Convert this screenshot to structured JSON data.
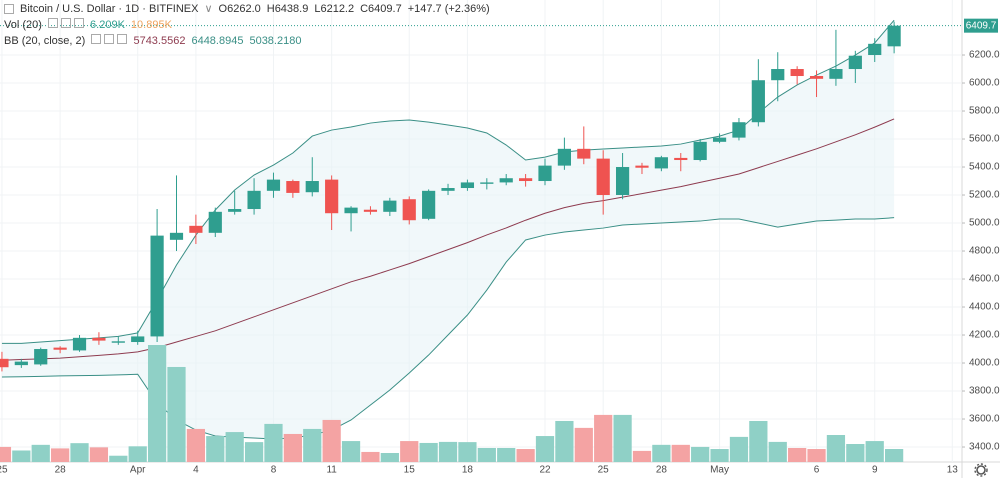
{
  "chart_data": {
    "type": "candlestick",
    "title": "Bitcoin / U.S. Dollar · 1D · BITFINEX",
    "ohlc_legend": [
      "O6262.0",
      "H6438.9",
      "L6212.2",
      "C6409.7",
      "+147.7 (+2.36%)"
    ],
    "open": [
      4030,
      3985,
      3990,
      4110,
      4090,
      4180,
      4145,
      4150,
      4190,
      4880,
      4980,
      4930,
      5080,
      5100,
      5230,
      5300,
      5220,
      5310,
      5070,
      5095,
      5080,
      5170,
      5030,
      5230,
      5250,
      5280,
      5290,
      5320,
      5300,
      5410,
      5530,
      5460,
      5200,
      5410,
      5390,
      5465,
      5450,
      5580,
      5610,
      5720,
      6020,
      6100,
      6050,
      6030,
      6100,
      6200,
      6262
    ],
    "high": [
      4080,
      4030,
      4110,
      4120,
      4200,
      4220,
      4190,
      4230,
      5100,
      5340,
      5060,
      5110,
      5230,
      5320,
      5360,
      5310,
      5470,
      5340,
      5120,
      5120,
      5180,
      5190,
      5240,
      5280,
      5310,
      5320,
      5350,
      5350,
      5460,
      5610,
      5690,
      5520,
      5500,
      5430,
      5480,
      5500,
      5600,
      5640,
      5750,
      6170,
      6220,
      6120,
      6090,
      6380,
      6230,
      6320,
      6438.9
    ],
    "low": [
      3940,
      3965,
      3980,
      4070,
      4080,
      4130,
      4130,
      4130,
      4150,
      4800,
      4850,
      4900,
      5060,
      5060,
      5180,
      5180,
      5190,
      4950,
      4940,
      5060,
      5050,
      4990,
      5020,
      5200,
      5230,
      5240,
      5270,
      5260,
      5270,
      5380,
      5420,
      5060,
      5170,
      5350,
      5370,
      5370,
      5440,
      5570,
      5590,
      5690,
      5870,
      5990,
      5900,
      5980,
      6000,
      6150,
      6212.2
    ],
    "close": [
      3970,
      4010,
      4100,
      4095,
      4180,
      4160,
      4155,
      4190,
      4910,
      4930,
      4930,
      5080,
      5100,
      5230,
      5310,
      5215,
      5300,
      5070,
      5110,
      5080,
      5160,
      5020,
      5230,
      5250,
      5290,
      5290,
      5320,
      5300,
      5410,
      5530,
      5460,
      5200,
      5400,
      5395,
      5470,
      5450,
      5580,
      5610,
      5720,
      6020,
      6100,
      6050,
      6030,
      6100,
      6195,
      6280,
      6409.7
    ],
    "up_color": "#2f9e8f",
    "down_color": "#ef5350",
    "ylim": [
      3293,
      6593
    ],
    "yticks": [
      {
        "value": 3400,
        "label": "3400.0"
      },
      {
        "value": 3600,
        "label": "3600.0"
      },
      {
        "value": 3800,
        "label": "3800.0"
      },
      {
        "value": 4000,
        "label": "4000.0"
      },
      {
        "value": 4200,
        "label": "4200.0"
      },
      {
        "value": 4400,
        "label": "4400.0"
      },
      {
        "value": 4600,
        "label": "4600.0"
      },
      {
        "value": 4800,
        "label": "4800.0"
      },
      {
        "value": 5000,
        "label": "5000.0"
      },
      {
        "value": 5200,
        "label": "5200.0"
      },
      {
        "value": 5400,
        "label": "5400.0"
      },
      {
        "value": 5600,
        "label": "5600.0"
      },
      {
        "value": 5800,
        "label": "5800.0"
      },
      {
        "value": 6000,
        "label": "6000.0"
      },
      {
        "value": 6200,
        "label": "6200.0"
      }
    ],
    "last_price": {
      "value": 6409.7,
      "label": "6409.7"
    },
    "xlim": [
      -0.1,
      49.5
    ],
    "xticks": [
      {
        "value": 0,
        "label": "25"
      },
      {
        "value": 3,
        "label": "28"
      },
      {
        "value": 7,
        "label": "Apr"
      },
      {
        "value": 10,
        "label": "4"
      },
      {
        "value": 14,
        "label": "8"
      },
      {
        "value": 17,
        "label": "11"
      },
      {
        "value": 21,
        "label": "15"
      },
      {
        "value": 24,
        "label": "18"
      },
      {
        "value": 28,
        "label": "22"
      },
      {
        "value": 31,
        "label": "25"
      },
      {
        "value": 34,
        "label": "28"
      },
      {
        "value": 37,
        "label": "May"
      },
      {
        "value": 42,
        "label": "6"
      },
      {
        "value": 45,
        "label": "9"
      },
      {
        "value": 49,
        "label": "13"
      }
    ],
    "grid": true,
    "indicators": [
      {
        "type": "volume",
        "title": "Vol (20)",
        "legend": [
          "6.209K",
          "10.895K"
        ],
        "legend_colors": [
          "#2f9e8f",
          "#f0a35e"
        ],
        "values": [
          7.2,
          5.5,
          8.2,
          6.5,
          9.0,
          7.0,
          3.0,
          7.5,
          55.9,
          45.4,
          15.8,
          12.4,
          14.3,
          9.5,
          18.2,
          13.4,
          15.8,
          20.1,
          10.0,
          4.8,
          4.3,
          10.0,
          9.1,
          9.6,
          9.5,
          6.7,
          6.7,
          6.2,
          12.4,
          19.6,
          16.3,
          22.5,
          22.5,
          5.3,
          8.2,
          8.2,
          7.2,
          6.2,
          12.0,
          19.6,
          9.6,
          6.7,
          6.2,
          12.9,
          8.6,
          10.0,
          6.209
        ],
        "up_color": "#8fd0c6",
        "down_color": "#f4a3a3"
      },
      {
        "type": "bollinger",
        "title": "BB (20, close, 2)",
        "legend": [
          "5743.5562",
          "6448.8945",
          "5038.2180"
        ],
        "legend_colors": [
          "#8e3b4f",
          "#3a8f86",
          "#3a8f86"
        ],
        "middle": [
          4020,
          4025,
          4030,
          4035,
          4045,
          4055,
          4065,
          4080,
          4110,
          4150,
          4190,
          4230,
          4280,
          4330,
          4380,
          4430,
          4480,
          4530,
          4580,
          4620,
          4665,
          4710,
          4760,
          4810,
          4860,
          4915,
          4965,
          5020,
          5070,
          5110,
          5140,
          5160,
          5185,
          5210,
          5235,
          5260,
          5290,
          5320,
          5350,
          5395,
          5440,
          5485,
          5530,
          5580,
          5630,
          5685,
          5743.5562
        ],
        "upper": [
          4140,
          4140,
          4150,
          4160,
          4170,
          4180,
          4190,
          4215,
          4450,
          4700,
          4914,
          5093,
          5236,
          5343,
          5414,
          5500,
          5621,
          5664,
          5686,
          5714,
          5729,
          5736,
          5721,
          5700,
          5679,
          5643,
          5557,
          5450,
          5471,
          5507,
          5521,
          5529,
          5536,
          5543,
          5550,
          5564,
          5593,
          5621,
          5664,
          5786,
          5900,
          5986,
          6057,
          6121,
          6200,
          6286,
          6448.8945
        ],
        "lower": [
          3900,
          3902,
          3905,
          3908,
          3910,
          3912,
          3915,
          3920,
          3714,
          3593,
          3521,
          3479,
          3471,
          3464,
          3457,
          3464,
          3486,
          3521,
          3593,
          3700,
          3807,
          3929,
          4057,
          4200,
          4343,
          4521,
          4721,
          4879,
          4914,
          4936,
          4950,
          4964,
          4986,
          4993,
          5000,
          5007,
          5014,
          5029,
          5029,
          5000,
          4971,
          4993,
          5014,
          5021,
          5029,
          5029,
          5038.218
        ],
        "middle_color": "#8e3b4f",
        "band_color": "#3a8f86",
        "fill_color": "#e6f3f6"
      }
    ]
  }
}
